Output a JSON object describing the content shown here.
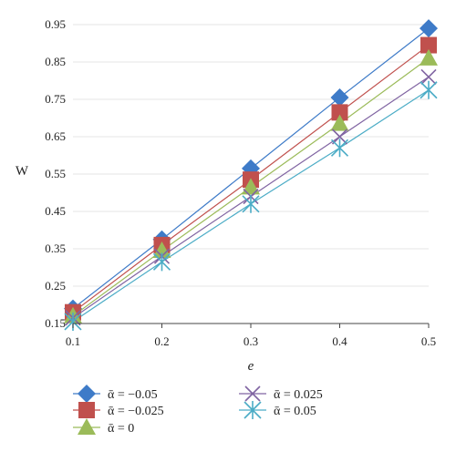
{
  "chart_data": {
    "type": "line",
    "xlabel": "e",
    "ylabel": "W",
    "x": [
      0.1,
      0.2,
      0.3,
      0.4,
      0.5
    ],
    "xticks": [
      "0.1",
      "0.2",
      "0.3",
      "0.4",
      "0.5"
    ],
    "yticks": [
      "0.15",
      "0.25",
      "0.35",
      "0.45",
      "0.55",
      "0.65",
      "0.75",
      "0.85",
      "0.95"
    ],
    "xlim": [
      0.1,
      0.5
    ],
    "ylim": [
      0.15,
      0.95
    ],
    "grid": "horizontal",
    "legend_position": "bottom",
    "series": [
      {
        "name": "ᾱ = −0.05",
        "marker": "diamond",
        "color": "#3E7BC8",
        "values": [
          0.19,
          0.375,
          0.565,
          0.755,
          0.94
        ]
      },
      {
        "name": "ᾱ = −0.025",
        "marker": "square",
        "color": "#C0504D",
        "values": [
          0.18,
          0.36,
          0.535,
          0.715,
          0.895
        ]
      },
      {
        "name": "ᾱ = 0",
        "marker": "triangle",
        "color": "#9BBB59",
        "values": [
          0.17,
          0.345,
          0.515,
          0.685,
          0.86
        ]
      },
      {
        "name": "ᾱ = 0.025",
        "marker": "x",
        "color": "#8064A2",
        "values": [
          0.165,
          0.33,
          0.49,
          0.65,
          0.81
        ]
      },
      {
        "name": "ᾱ = 0.05",
        "marker": "star",
        "color": "#4BACC6",
        "values": [
          0.155,
          0.315,
          0.47,
          0.62,
          0.775
        ]
      }
    ]
  }
}
